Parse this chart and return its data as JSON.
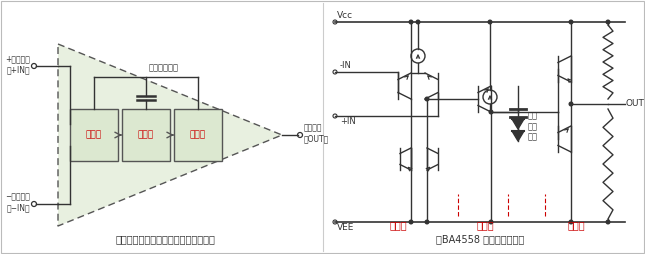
{
  "bg_color": "#ffffff",
  "left_panel": {
    "title": "「一般的運算放大器的內部電路結構」",
    "triangle_fill": "#e8f0e0",
    "triangle_border": "#555555",
    "box_fill": "#dce8d0",
    "box_border": "#555555",
    "label_color": "#cc0000",
    "text_color": "#333333",
    "labels": [
      "輸入段",
      "增益段",
      "輸出段"
    ],
    "plus_input": "+輸入端子\n（+IN）",
    "minus_input": "−輸入端子\n（−IN）",
    "output_label": "輸出端子\n（OUT）",
    "cap_label": "相位補償電容"
  },
  "right_panel": {
    "title": "【BA4558 内部等效電路】",
    "text_color": "#333333",
    "label_color": "#cc0000",
    "labels": [
      "輸入段",
      "增益段",
      "輸出段"
    ],
    "vcc": "Vcc",
    "vee": "VEE",
    "minus_in": "-IN",
    "plus_in": "+IN",
    "out": "OUT",
    "cap": "相位\n補償\n電容"
  }
}
